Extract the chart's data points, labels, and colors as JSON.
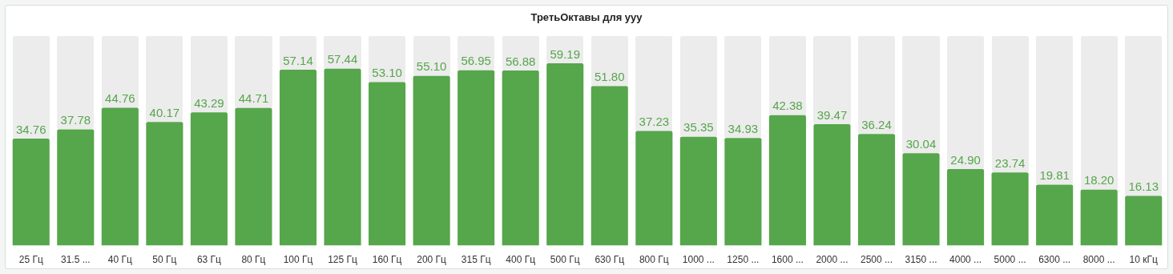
{
  "chart_data": {
    "type": "bar",
    "title": "ТретьОктавы для ууу",
    "categories": [
      "25 Гц",
      "31.5 ...",
      "40 Гц",
      "50 Гц",
      "63 Гц",
      "80 Гц",
      "100 Гц",
      "125 Гц",
      "160 Гц",
      "200 Гц",
      "315 Гц",
      "400 Гц",
      "500 Гц",
      "630 Гц",
      "800 Гц",
      "1000 ...",
      "1250 ...",
      "1600 ...",
      "2000 ...",
      "2500 ...",
      "3150 ...",
      "4000 ...",
      "5000 ...",
      "6300 ...",
      "8000 ...",
      "10 кГц"
    ],
    "values": [
      34.76,
      37.78,
      44.76,
      40.17,
      43.29,
      44.71,
      57.14,
      57.44,
      53.1,
      55.1,
      56.95,
      56.88,
      59.19,
      51.8,
      37.23,
      35.35,
      34.93,
      42.38,
      39.47,
      36.24,
      30.04,
      24.9,
      23.74,
      19.81,
      18.2,
      16.13
    ],
    "value_labels": [
      "34.76",
      "37.78",
      "44.76",
      "40.17",
      "43.29",
      "44.71",
      "57.14",
      "57.44",
      "53.10",
      "55.10",
      "56.95",
      "56.88",
      "59.19",
      "51.80",
      "37.23",
      "35.35",
      "34.93",
      "42.38",
      "39.47",
      "36.24",
      "30.04",
      "24.90",
      "23.74",
      "19.81",
      "18.20",
      "16.13"
    ],
    "color": "#56a64b",
    "tick_labels": "x"
  }
}
